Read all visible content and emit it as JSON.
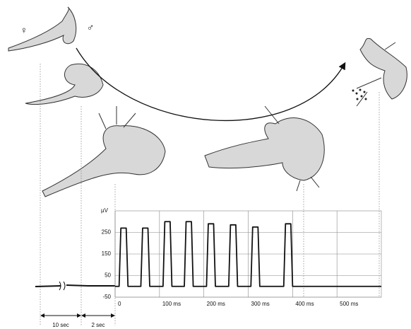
{
  "chart_data": {
    "type": "line",
    "y_label": "µV",
    "annotations": [
      "♀",
      "♂",
      "10 sec",
      "2 sec"
    ],
    "x": [
      0,
      9,
      13,
      25,
      29,
      58,
      62,
      74,
      78,
      108,
      112,
      124,
      128,
      156,
      160,
      172,
      176,
      206,
      210,
      222,
      226,
      256,
      260,
      272,
      276,
      306,
      310,
      322,
      326,
      380,
      384,
      396,
      400,
      600
    ],
    "series": [
      {
        "color": "#111111",
        "values": [
          0,
          0,
          270,
          270,
          0,
          0,
          270,
          270,
          0,
          0,
          300,
          300,
          0,
          0,
          300,
          300,
          0,
          0,
          290,
          290,
          0,
          0,
          285,
          285,
          0,
          0,
          275,
          275,
          0,
          0,
          290,
          290,
          0,
          0
        ]
      }
    ],
    "xlim": [
      0,
      600
    ],
    "ylim": [
      -50,
      350
    ],
    "xticks": [
      0,
      {
        "value": 100,
        "label": "100 ms"
      },
      {
        "value": 200,
        "label": "200 ms"
      },
      {
        "value": 300,
        "label": "300 ms"
      },
      {
        "value": 400,
        "label": "400 ms"
      },
      {
        "value": 500,
        "label": "500 ms"
      }
    ],
    "yticks": [
      -50,
      50,
      150,
      250
    ],
    "grid": true
  }
}
